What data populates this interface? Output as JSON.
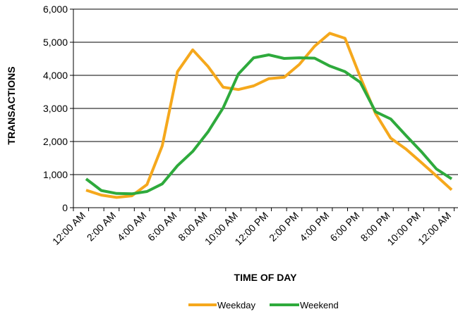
{
  "chart_data": {
    "type": "line",
    "title": "",
    "xlabel": "TIME OF DAY",
    "ylabel": "TRANSACTIONS",
    "ylim": [
      0,
      6000
    ],
    "yticks": [
      "0",
      "1,000",
      "2,000",
      "3,000",
      "4,000",
      "5,000",
      "6,000"
    ],
    "ytick_values": [
      0,
      1000,
      2000,
      3000,
      4000,
      5000,
      6000
    ],
    "x": [
      "12:00 AM",
      "1:00 AM",
      "2:00 AM",
      "3:00 AM",
      "4:00 AM",
      "5:00 AM",
      "6:00 AM",
      "7:00 AM",
      "8:00 AM",
      "9:00 AM",
      "10:00 AM",
      "11:00 AM",
      "12:00 PM",
      "1:00 PM",
      "2:00 PM",
      "3:00 PM",
      "4:00 PM",
      "5:00 PM",
      "6:00 PM",
      "7:00 PM",
      "8:00 PM",
      "9:00 PM",
      "10:00 PM",
      "11:00 PM",
      "12:00 AM"
    ],
    "xticks_shown": [
      "12:00 AM",
      "2:00 AM",
      "4:00 AM",
      "6:00 AM",
      "8:00 AM",
      "10:00 AM",
      "12:00 PM",
      "2:00 PM",
      "4:00 PM",
      "6:00 PM",
      "8:00 PM",
      "10:00 PM",
      "12:00 AM"
    ],
    "series": [
      {
        "name": "Weekday",
        "color": "#F5A81C",
        "values": [
          530,
          380,
          310,
          360,
          700,
          1870,
          4110,
          4770,
          4270,
          3640,
          3570,
          3680,
          3900,
          3940,
          4330,
          4880,
          5270,
          5120,
          3950,
          2850,
          2100,
          1770,
          1370,
          960,
          540
        ]
      },
      {
        "name": "Weekend",
        "color": "#2EAA3C",
        "values": [
          870,
          520,
          430,
          420,
          490,
          720,
          1270,
          1700,
          2290,
          3020,
          4040,
          4530,
          4620,
          4510,
          4530,
          4520,
          4280,
          4110,
          3790,
          2900,
          2680,
          2180,
          1700,
          1170,
          870
        ]
      }
    ],
    "grid": true,
    "legend": "bottom"
  }
}
